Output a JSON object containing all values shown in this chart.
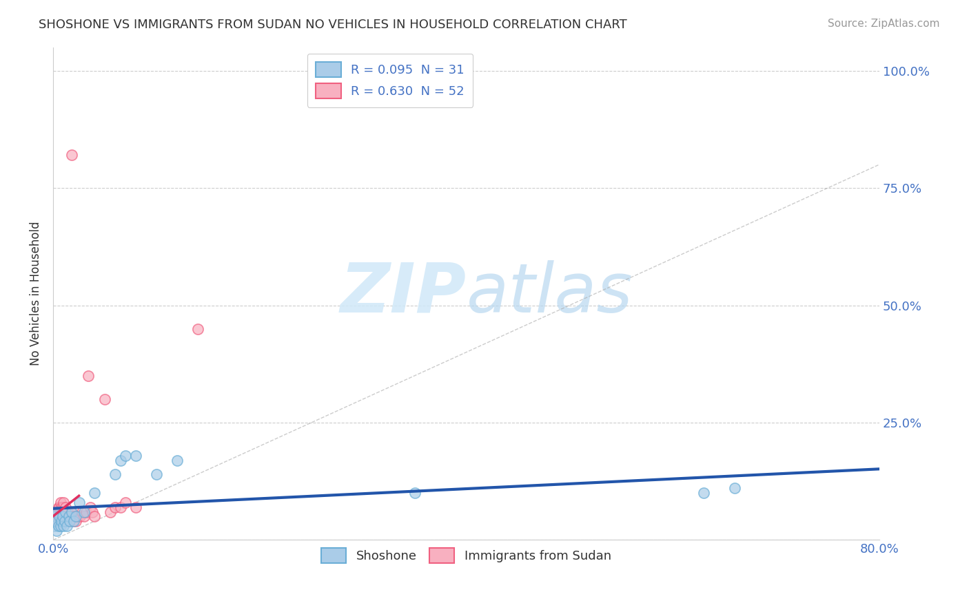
{
  "title": "SHOSHONE VS IMMIGRANTS FROM SUDAN NO VEHICLES IN HOUSEHOLD CORRELATION CHART",
  "source": "Source: ZipAtlas.com",
  "ylabel": "No Vehicles in Household",
  "shoshone_color": "#6aaed6",
  "shoshone_face": "#aacce8",
  "sudan_color": "#f06080",
  "sudan_face": "#f8b0c0",
  "shoshone_line_color": "#2255aa",
  "sudan_line_color": "#e03060",
  "ref_line_color": "#aaaaaa",
  "watermark_color": "#d0e8f8",
  "background_color": "#ffffff",
  "grid_color": "#cccccc",
  "title_color": "#333333",
  "source_color": "#999999",
  "label_color": "#4472c4",
  "ytick_labels": [
    "",
    "25.0%",
    "50.0%",
    "75.0%",
    "100.0%"
  ],
  "ytick_vals": [
    0.0,
    0.25,
    0.5,
    0.75,
    1.0
  ],
  "xlim": [
    0.0,
    0.8
  ],
  "ylim": [
    0.0,
    1.05
  ],
  "shoshone_x": [
    0.0,
    0.001,
    0.002,
    0.003,
    0.004,
    0.005,
    0.006,
    0.007,
    0.008,
    0.009,
    0.01,
    0.011,
    0.012,
    0.013,
    0.015,
    0.016,
    0.018,
    0.02,
    0.022,
    0.025,
    0.03,
    0.04,
    0.06,
    0.065,
    0.07,
    0.08,
    0.1,
    0.12,
    0.35,
    0.63,
    0.66
  ],
  "shoshone_y": [
    0.05,
    0.03,
    0.04,
    0.02,
    0.06,
    0.03,
    0.05,
    0.03,
    0.04,
    0.05,
    0.03,
    0.04,
    0.06,
    0.03,
    0.05,
    0.04,
    0.06,
    0.04,
    0.05,
    0.08,
    0.06,
    0.1,
    0.14,
    0.17,
    0.18,
    0.18,
    0.14,
    0.17,
    0.1,
    0.1,
    0.11
  ],
  "sudan_x": [
    0.0,
    0.0,
    0.001,
    0.001,
    0.002,
    0.002,
    0.003,
    0.003,
    0.004,
    0.004,
    0.005,
    0.005,
    0.006,
    0.006,
    0.007,
    0.007,
    0.008,
    0.008,
    0.009,
    0.009,
    0.01,
    0.01,
    0.011,
    0.012,
    0.013,
    0.014,
    0.015,
    0.015,
    0.016,
    0.017,
    0.018,
    0.019,
    0.02,
    0.021,
    0.022,
    0.024,
    0.026,
    0.028,
    0.03,
    0.032,
    0.034,
    0.036,
    0.038,
    0.04,
    0.05,
    0.055,
    0.06,
    0.065,
    0.07,
    0.08,
    0.018,
    0.14
  ],
  "sudan_y": [
    0.04,
    0.05,
    0.04,
    0.05,
    0.04,
    0.05,
    0.05,
    0.06,
    0.04,
    0.06,
    0.05,
    0.07,
    0.05,
    0.07,
    0.06,
    0.08,
    0.05,
    0.07,
    0.05,
    0.07,
    0.06,
    0.08,
    0.06,
    0.07,
    0.05,
    0.06,
    0.04,
    0.05,
    0.05,
    0.06,
    0.05,
    0.04,
    0.05,
    0.05,
    0.04,
    0.05,
    0.05,
    0.06,
    0.05,
    0.06,
    0.35,
    0.07,
    0.06,
    0.05,
    0.3,
    0.06,
    0.07,
    0.07,
    0.08,
    0.07,
    0.82,
    0.45
  ],
  "legend_labels": [
    "R = 0.095  N = 31",
    "R = 0.630  N = 52"
  ],
  "bottom_legend_labels": [
    "Shoshone",
    "Immigrants from Sudan"
  ]
}
